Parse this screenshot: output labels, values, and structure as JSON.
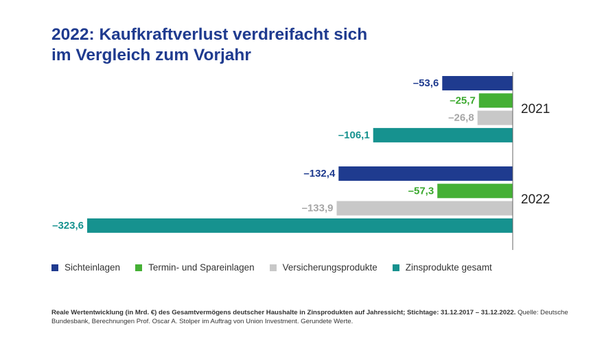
{
  "title": {
    "line1": "2022: Kaufkraftverlust verdreifacht sich",
    "line2": "im Vergleich zum Vorjahr"
  },
  "chart_data": {
    "type": "bar",
    "orientation": "horizontal",
    "value_format": "de-DE, 1 decimal, en-dash minus",
    "groups": [
      "2021",
      "2022"
    ],
    "series": [
      {
        "name": "Sichteinlagen",
        "color": "#1f3b8f",
        "label_color": "#1f3b8f",
        "values": [
          -53.6,
          -132.4
        ]
      },
      {
        "name": "Termin- und Spareinlagen",
        "color": "#45b035",
        "label_color": "#3aa82c",
        "values": [
          -25.7,
          -57.3
        ]
      },
      {
        "name": "Versicherungsprodukte",
        "color": "#c8c8c8",
        "label_color": "#a6a6a6",
        "values": [
          -26.8,
          -133.9
        ]
      },
      {
        "name": "Zinsprodukte gesamt",
        "color": "#16928f",
        "label_color": "#16928f",
        "values": [
          -106.1,
          -323.6
        ]
      }
    ],
    "data_labels": [
      [
        "–53,6",
        "–25,7",
        "–26,8",
        "–106,1"
      ],
      [
        "–132,4",
        "–57,3",
        "–133,9",
        "–323,6"
      ]
    ],
    "xlim": [
      -323.6,
      0
    ],
    "legend_position": "bottom",
    "grid": false
  },
  "footnote": {
    "bold": "Reale Wertentwicklung (in Mrd. €) des Gesamtvermögens deutscher Haushalte in Zinsprodukten auf Jahressicht; Stichtage: 31.12.2017 – 31.12.2022.",
    "normal": " Quelle: Deutsche Bundesbank, Berechnungen Prof. Oscar A. Stolper im Auftrag von Union Investment. Gerundete Werte."
  }
}
